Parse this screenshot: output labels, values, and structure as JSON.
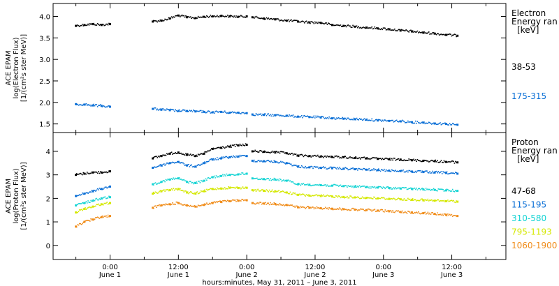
{
  "chart_data": [
    {
      "type": "scatter",
      "ylabel_lines": [
        "ACE EPAM",
        "log(Electron Flux)",
        "[1/(cm²s ster MeV)]"
      ],
      "ylim": [
        1.3,
        4.3
      ],
      "yticks": [
        1.5,
        2.0,
        2.5,
        3.0,
        3.5,
        4.0
      ],
      "ytick_labels": [
        "1.5",
        "2.0",
        "2.5",
        "3.0",
        "3.5",
        "4.0"
      ],
      "legend_title_lines": [
        "Electron",
        "Energy ran",
        "[keV]"
      ],
      "series": [
        {
          "name": "38-53",
          "color": "#000000",
          "segments": [
            {
              "x": [
                -6.0,
                -4.5,
                -3.0,
                -1.5,
                0.0
              ],
              "y": [
                3.78,
                3.8,
                3.82,
                3.8,
                3.82
              ]
            },
            {
              "x": [
                7.5,
                9.0,
                10.5,
                12.0,
                13.5,
                15.0,
                16.5,
                18.0,
                19.5,
                21.0,
                22.5,
                24.0
              ],
              "y": [
                3.88,
                3.9,
                3.95,
                4.02,
                3.98,
                3.96,
                3.99,
                4.0,
                4.01,
                4.0,
                3.99,
                4.0
              ]
            },
            {
              "x": [
                25.0,
                27.0,
                29.0,
                31.0,
                33.0,
                35.0,
                37.0,
                39.0,
                41.0,
                43.0,
                45.0,
                47.0,
                49.0,
                51.0,
                53.0,
                55.0,
                57.0,
                59.0,
                61.0
              ],
              "y": [
                3.98,
                3.95,
                3.93,
                3.9,
                3.88,
                3.86,
                3.85,
                3.8,
                3.78,
                3.76,
                3.74,
                3.72,
                3.7,
                3.67,
                3.65,
                3.62,
                3.6,
                3.57,
                3.55
              ]
            }
          ]
        },
        {
          "name": "175-315",
          "color": "#0a6fd6",
          "segments": [
            {
              "x": [
                -6.0,
                -4.5,
                -3.0,
                -1.5,
                0.0
              ],
              "y": [
                1.96,
                1.95,
                1.93,
                1.92,
                1.9
              ]
            },
            {
              "x": [
                7.5,
                9.0,
                10.5,
                12.0,
                13.5,
                15.0,
                16.5,
                18.0,
                19.5,
                21.0,
                22.5,
                24.0
              ],
              "y": [
                1.85,
                1.83,
                1.82,
                1.8,
                1.8,
                1.79,
                1.78,
                1.77,
                1.78,
                1.76,
                1.76,
                1.75
              ]
            },
            {
              "x": [
                25.0,
                27.0,
                29.0,
                31.0,
                33.0,
                35.0,
                37.0,
                39.0,
                41.0,
                43.0,
                45.0,
                47.0,
                49.0,
                51.0,
                53.0,
                55.0,
                57.0,
                59.0,
                61.0
              ],
              "y": [
                1.72,
                1.71,
                1.7,
                1.69,
                1.67,
                1.66,
                1.65,
                1.63,
                1.62,
                1.61,
                1.6,
                1.58,
                1.57,
                1.56,
                1.54,
                1.53,
                1.51,
                1.5,
                1.48
              ]
            }
          ]
        }
      ]
    },
    {
      "type": "scatter",
      "ylabel_lines": [
        "ACE EPAM",
        "log(Proton Flux)",
        "[1/(cm²s ster MeV)]"
      ],
      "ylim": [
        -0.6,
        4.8
      ],
      "yticks": [
        0,
        1,
        2,
        3,
        4
      ],
      "ytick_labels": [
        "0",
        "1",
        "2",
        "3",
        "4"
      ],
      "legend_title_lines": [
        "Proton",
        "Energy ran",
        "[keV]"
      ],
      "series": [
        {
          "name": "47-68",
          "color": "#000000",
          "segments": [
            {
              "x": [
                -6.0,
                -4.5,
                -3.0,
                -1.5,
                0.0
              ],
              "y": [
                3.0,
                3.05,
                3.1,
                3.1,
                3.15
              ]
            },
            {
              "x": [
                7.5,
                9.0,
                10.5,
                12.0,
                13.5,
                15.0,
                16.5,
                18.0,
                19.5,
                21.0,
                22.5,
                24.0
              ],
              "y": [
                3.7,
                3.8,
                3.9,
                3.95,
                3.85,
                3.8,
                3.9,
                4.1,
                4.15,
                4.2,
                4.25,
                4.28
              ]
            },
            {
              "x": [
                25.0,
                27.0,
                29.0,
                31.0,
                33.0,
                35.0,
                37.0,
                39.0,
                41.0,
                43.0,
                45.0,
                47.0,
                49.0,
                51.0,
                53.0,
                55.0,
                57.0,
                59.0,
                61.0
              ],
              "y": [
                4.0,
                3.98,
                3.95,
                3.92,
                3.82,
                3.8,
                3.78,
                3.76,
                3.75,
                3.72,
                3.7,
                3.68,
                3.66,
                3.65,
                3.62,
                3.6,
                3.58,
                3.55,
                3.53
              ]
            }
          ]
        },
        {
          "name": "115-195",
          "color": "#0a6fd6",
          "segments": [
            {
              "x": [
                -6.0,
                -4.5,
                -3.0,
                -1.5,
                0.0
              ],
              "y": [
                2.1,
                2.2,
                2.3,
                2.4,
                2.5
              ]
            },
            {
              "x": [
                7.5,
                9.0,
                10.5,
                12.0,
                13.5,
                15.0,
                16.5,
                18.0,
                19.5,
                21.0,
                22.5,
                24.0
              ],
              "y": [
                3.3,
                3.4,
                3.5,
                3.55,
                3.4,
                3.35,
                3.5,
                3.65,
                3.7,
                3.75,
                3.78,
                3.8
              ]
            },
            {
              "x": [
                25.0,
                27.0,
                29.0,
                31.0,
                33.0,
                35.0,
                37.0,
                39.0,
                41.0,
                43.0,
                45.0,
                47.0,
                49.0,
                51.0,
                53.0,
                55.0,
                57.0,
                59.0,
                61.0
              ],
              "y": [
                3.6,
                3.58,
                3.55,
                3.5,
                3.35,
                3.32,
                3.3,
                3.28,
                3.26,
                3.24,
                3.22,
                3.2,
                3.18,
                3.16,
                3.14,
                3.12,
                3.1,
                3.08,
                3.05
              ]
            }
          ]
        },
        {
          "name": "310-580",
          "color": "#17d4d4",
          "segments": [
            {
              "x": [
                -6.0,
                -4.5,
                -3.0,
                -1.5,
                0.0
              ],
              "y": [
                1.7,
                1.8,
                1.9,
                2.0,
                2.05
              ]
            },
            {
              "x": [
                7.5,
                9.0,
                10.5,
                12.0,
                13.5,
                15.0,
                16.5,
                18.0,
                19.5,
                21.0,
                22.5,
                24.0
              ],
              "y": [
                2.6,
                2.7,
                2.8,
                2.85,
                2.7,
                2.65,
                2.75,
                2.9,
                2.95,
                3.0,
                3.02,
                3.05
              ]
            },
            {
              "x": [
                25.0,
                27.0,
                29.0,
                31.0,
                33.0,
                35.0,
                37.0,
                39.0,
                41.0,
                43.0,
                45.0,
                47.0,
                49.0,
                51.0,
                53.0,
                55.0,
                57.0,
                59.0,
                61.0
              ],
              "y": [
                2.85,
                2.82,
                2.8,
                2.75,
                2.6,
                2.58,
                2.56,
                2.54,
                2.52,
                2.5,
                2.48,
                2.46,
                2.44,
                2.42,
                2.4,
                2.38,
                2.36,
                2.34,
                2.32
              ]
            }
          ]
        },
        {
          "name": "795-1193",
          "color": "#d4e800",
          "segments": [
            {
              "x": [
                -6.0,
                -4.5,
                -3.0,
                -1.5,
                0.0
              ],
              "y": [
                1.4,
                1.55,
                1.65,
                1.75,
                1.8
              ]
            },
            {
              "x": [
                7.5,
                9.0,
                10.5,
                12.0,
                13.5,
                15.0,
                16.5,
                18.0,
                19.5,
                21.0,
                22.5,
                24.0
              ],
              "y": [
                2.2,
                2.3,
                2.35,
                2.4,
                2.25,
                2.2,
                2.3,
                2.4,
                2.42,
                2.45,
                2.44,
                2.45
              ]
            },
            {
              "x": [
                25.0,
                27.0,
                29.0,
                31.0,
                33.0,
                35.0,
                37.0,
                39.0,
                41.0,
                43.0,
                45.0,
                47.0,
                49.0,
                51.0,
                53.0,
                55.0,
                57.0,
                59.0,
                61.0
              ],
              "y": [
                2.35,
                2.32,
                2.3,
                2.25,
                2.15,
                2.12,
                2.1,
                2.08,
                2.06,
                2.04,
                2.02,
                2.0,
                1.98,
                1.96,
                1.94,
                1.92,
                1.9,
                1.88,
                1.86
              ]
            }
          ]
        },
        {
          "name": "1060-1900",
          "color": "#f08c19",
          "segments": [
            {
              "x": [
                -6.0,
                -4.5,
                -3.0,
                -1.5,
                0.0
              ],
              "y": [
                0.8,
                1.0,
                1.1,
                1.2,
                1.25
              ]
            },
            {
              "x": [
                7.5,
                9.0,
                10.5,
                12.0,
                13.5,
                15.0,
                16.5,
                18.0,
                19.5,
                21.0,
                22.5,
                24.0
              ],
              "y": [
                1.6,
                1.7,
                1.75,
                1.8,
                1.7,
                1.65,
                1.72,
                1.8,
                1.85,
                1.88,
                1.9,
                1.92
              ]
            },
            {
              "x": [
                25.0,
                27.0,
                29.0,
                31.0,
                33.0,
                35.0,
                37.0,
                39.0,
                41.0,
                43.0,
                45.0,
                47.0,
                49.0,
                51.0,
                53.0,
                55.0,
                57.0,
                59.0,
                61.0
              ],
              "y": [
                1.8,
                1.78,
                1.76,
                1.72,
                1.62,
                1.6,
                1.58,
                1.56,
                1.54,
                1.52,
                1.5,
                1.48,
                1.45,
                1.42,
                1.4,
                1.37,
                1.34,
                1.3,
                1.25
              ]
            }
          ]
        }
      ]
    }
  ],
  "x_axis": {
    "xlim": [
      -10.0,
      69.5
    ],
    "ticks": [
      0,
      12,
      24,
      36,
      48,
      60
    ],
    "tick_labels": [
      "0:00",
      "12:00",
      "0:00",
      "12:00",
      "0:00",
      "12:00"
    ],
    "date_labels": [
      "June 1",
      "June 1",
      "June 2",
      "June 2",
      "June 3",
      "June 3"
    ],
    "title": "hours:minutes, May 31, 2011 – June  3, 2011"
  }
}
